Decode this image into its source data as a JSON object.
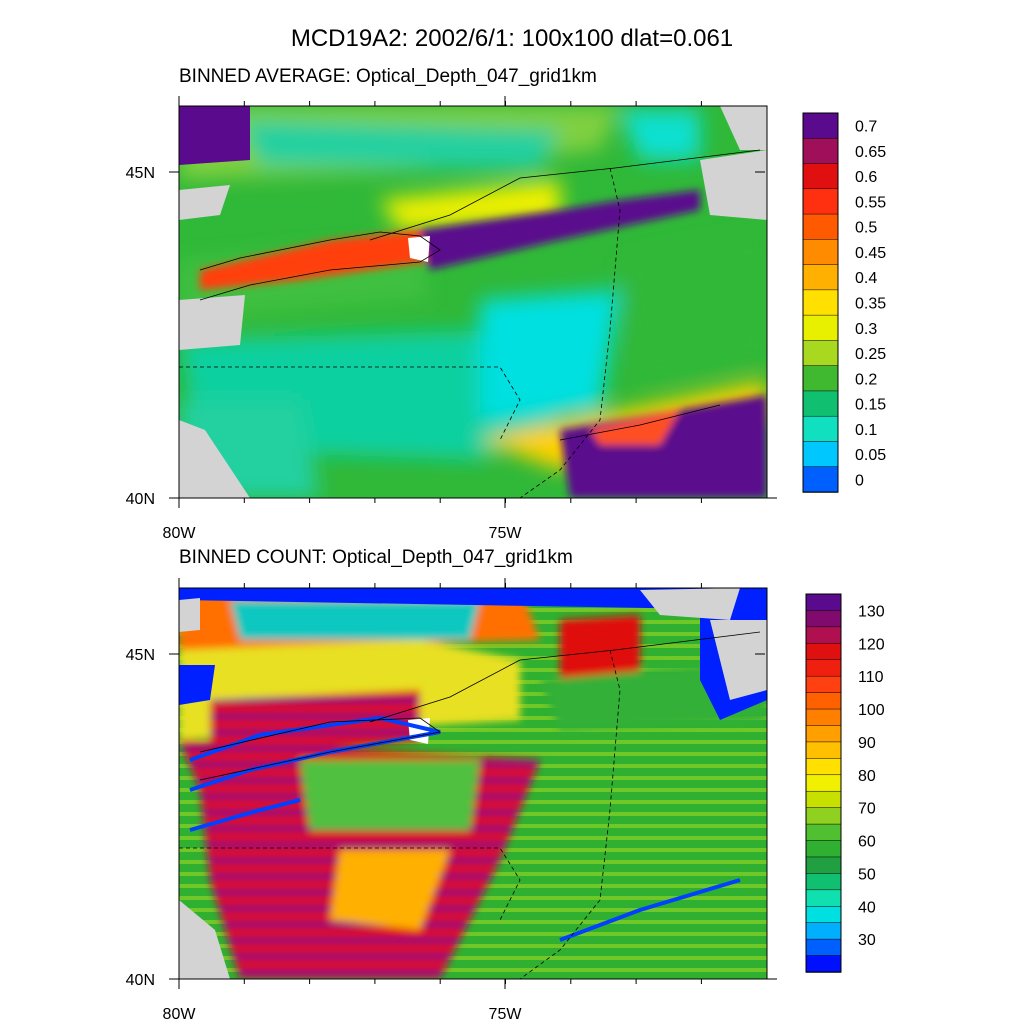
{
  "title": "MCD19A2: 2002/6/1: 100x100 dlat=0.061",
  "panels": [
    {
      "title": "BINNED AVERAGE: Optical_Depth_047_grid1km",
      "lat_labels": [
        "45N",
        "40N"
      ],
      "lon_labels": [
        "80W",
        "75W"
      ],
      "colorbar_labels": [
        "0.7",
        "0.65",
        "0.6",
        "0.55",
        "0.5",
        "0.45",
        "0.4",
        "0.35",
        "0.3",
        "0.25",
        "0.2",
        "0.15",
        "0.1",
        "0.05",
        "0"
      ]
    },
    {
      "title": "BINNED COUNT: Optical_Depth_047_grid1km",
      "lat_labels": [
        "45N",
        "40N"
      ],
      "lon_labels": [
        "80W",
        "75W"
      ],
      "colorbar_labels": [
        "130",
        "120",
        "110",
        "100",
        "90",
        "80",
        "70",
        "60",
        "50",
        "40",
        "30"
      ]
    }
  ]
}
